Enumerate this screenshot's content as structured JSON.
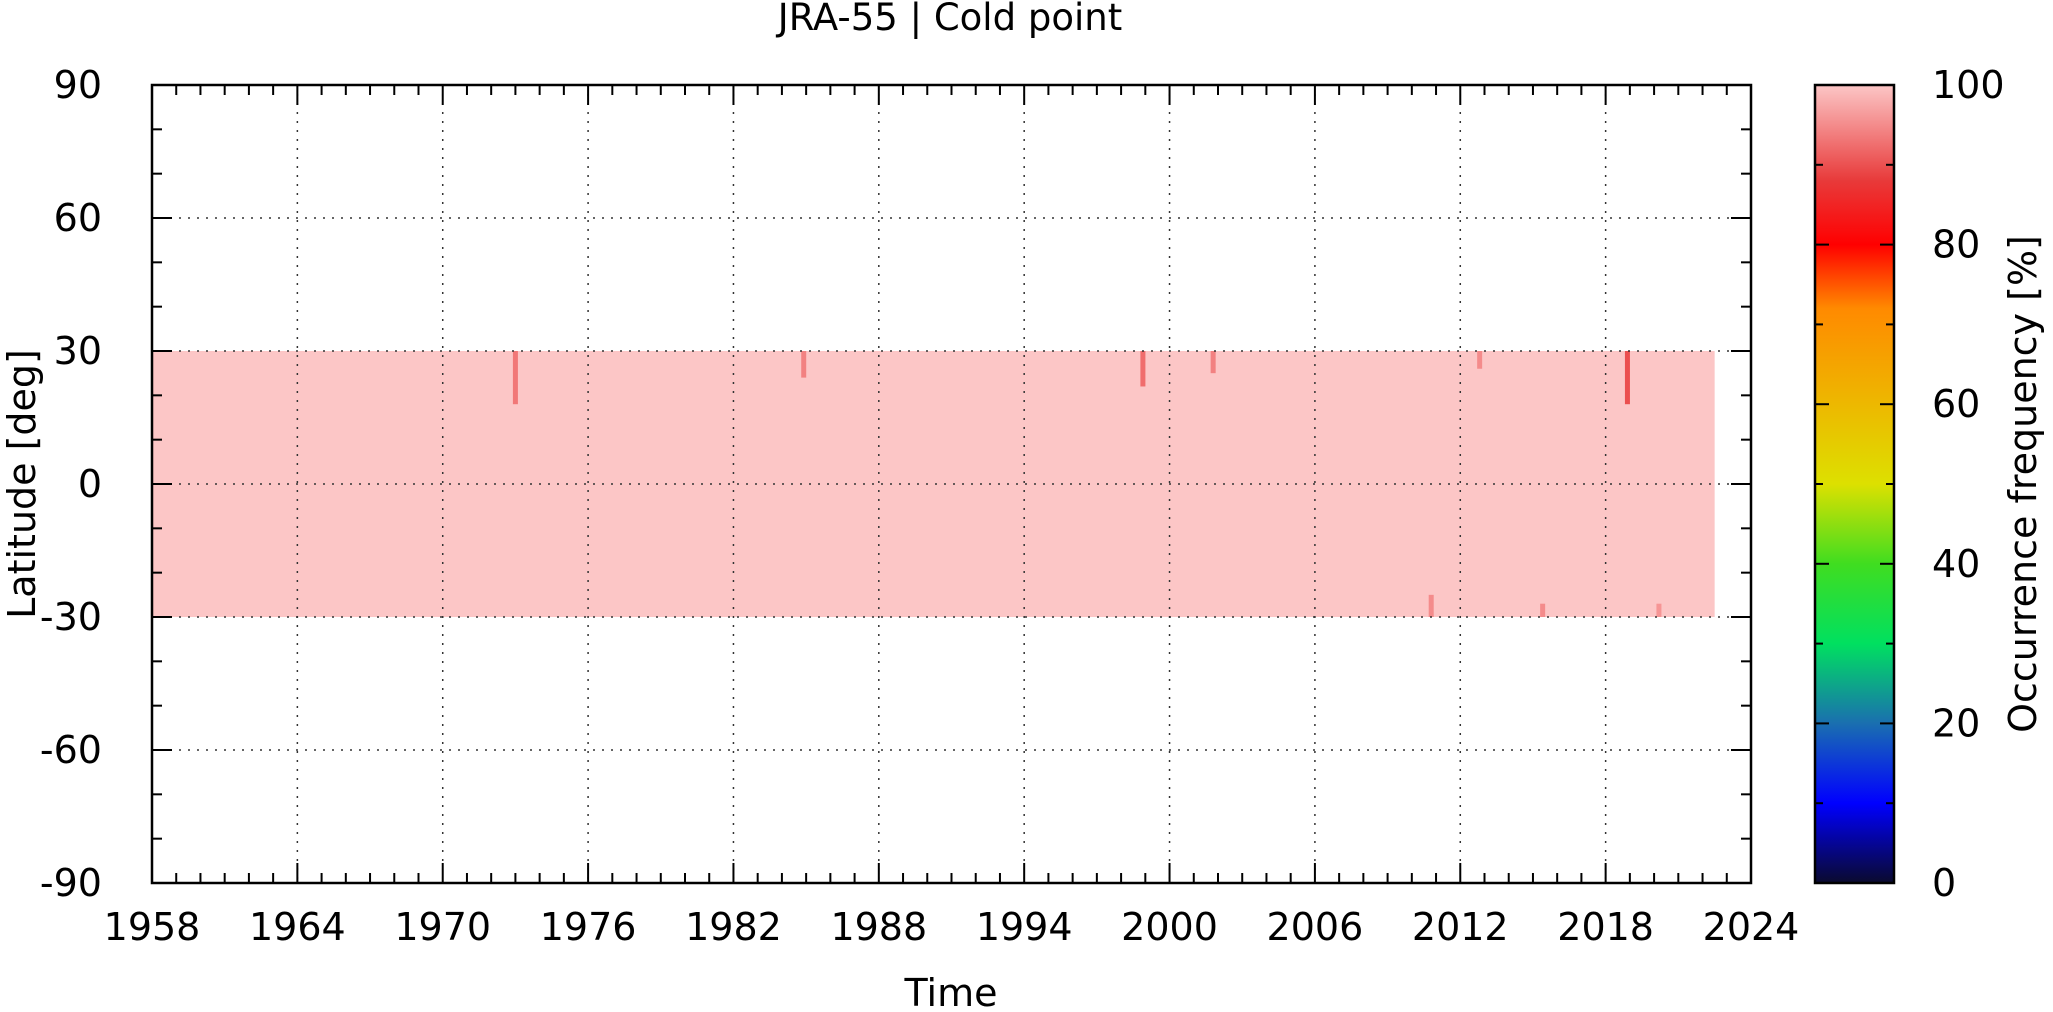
{
  "chart_data": {
    "type": "heatmap",
    "title": "JRA-55 | Cold point",
    "xlabel": "Time",
    "ylabel": "Latitude [deg]",
    "xlim": [
      1958,
      2024
    ],
    "ylim": [
      -90,
      90
    ],
    "x_ticks": [
      1958,
      1964,
      1970,
      1976,
      1982,
      1988,
      1994,
      2000,
      2006,
      2012,
      2018,
      2024
    ],
    "y_ticks": [
      90,
      60,
      30,
      0,
      -30,
      -60,
      -90
    ],
    "grid": true,
    "band": {
      "lat_range": [
        -30,
        30
      ],
      "time_range": [
        1958,
        2022.5
      ],
      "value": 97,
      "color": "#fcc6c6"
    },
    "dips": [
      {
        "time": 1973.0,
        "lat_from": 18,
        "lat_to": 30,
        "value": 92
      },
      {
        "time": 1984.9,
        "lat_from": 24,
        "lat_to": 30,
        "value": 93
      },
      {
        "time": 1998.9,
        "lat_from": 22,
        "lat_to": 30,
        "value": 91
      },
      {
        "time": 2001.8,
        "lat_from": 25,
        "lat_to": 30,
        "value": 93
      },
      {
        "time": 2012.8,
        "lat_from": 26,
        "lat_to": 30,
        "value": 94
      },
      {
        "time": 2018.9,
        "lat_from": 18,
        "lat_to": 30,
        "value": 88
      },
      {
        "time": 2010.8,
        "lat_from": -30,
        "lat_to": -25,
        "value": 94
      },
      {
        "time": 2015.4,
        "lat_from": -30,
        "lat_to": -27,
        "value": 94
      },
      {
        "time": 2020.2,
        "lat_from": -30,
        "lat_to": -27,
        "value": 95
      }
    ],
    "colorbar": {
      "label": "Occurrence frequency [%]",
      "range": [
        0,
        100
      ],
      "ticks": [
        100,
        80,
        60,
        40,
        20,
        0
      ],
      "stops": [
        {
          "value": 0,
          "color": "#0a0a2e"
        },
        {
          "value": 10,
          "color": "#0000ff"
        },
        {
          "value": 20,
          "color": "#1a6fb0"
        },
        {
          "value": 30,
          "color": "#00e060"
        },
        {
          "value": 40,
          "color": "#40dd20"
        },
        {
          "value": 50,
          "color": "#dde000"
        },
        {
          "value": 62,
          "color": "#f0b000"
        },
        {
          "value": 72,
          "color": "#ff8a00"
        },
        {
          "value": 80,
          "color": "#ff0000"
        },
        {
          "value": 88,
          "color": "#e83a3a"
        },
        {
          "value": 100,
          "color": "#fcc6c6"
        }
      ]
    }
  }
}
